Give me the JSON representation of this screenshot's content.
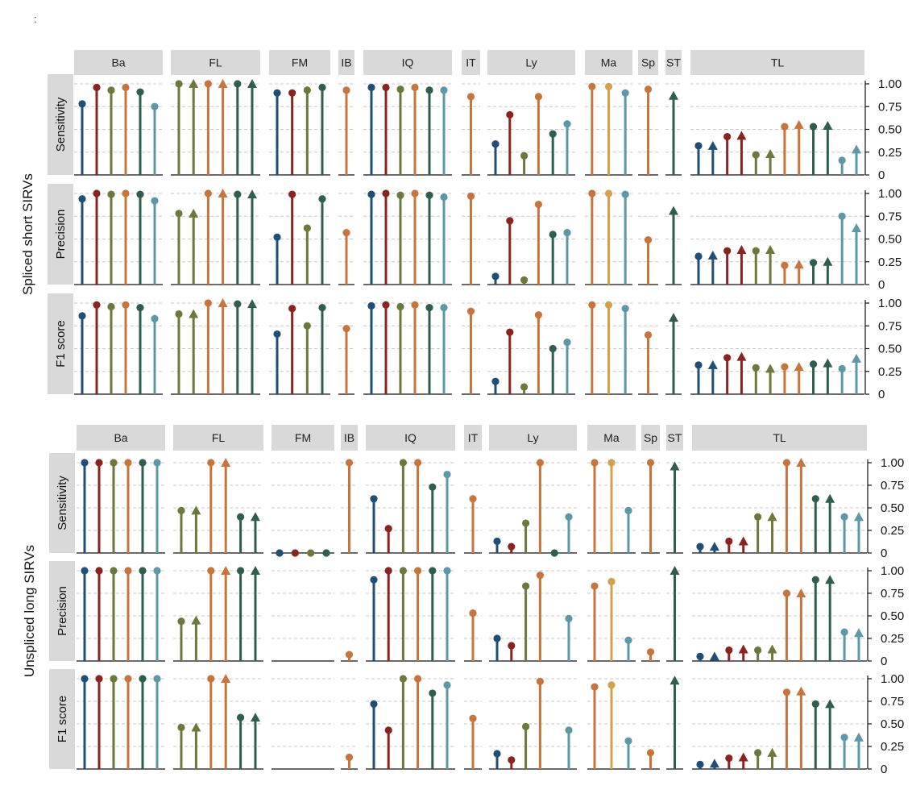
{
  "corner_mark": ":",
  "chart_data": {
    "type": "lollipop",
    "tools": [
      "Ba",
      "FL",
      "FM",
      "IB",
      "IQ",
      "IT",
      "Ly",
      "Ma",
      "Sp",
      "ST",
      "TL"
    ],
    "metrics": [
      "Sensitivity",
      "Precision",
      "F1 score"
    ],
    "ylim": [
      0,
      1
    ],
    "yticks": [
      0,
      0.25,
      0.5,
      0.75,
      1.0
    ],
    "ytick_labels": [
      "0",
      "0.25",
      "0.50",
      "0.75",
      "1.00"
    ],
    "grid": true,
    "colors": {
      "navy": "#1f4e79",
      "maroon": "#8b2420",
      "olive": "#6b7a3a",
      "orange": "#c9743a",
      "green": "#2f5e4e",
      "teal": "#5b98a8",
      "gold": "#d4a04a"
    },
    "panels": [
      {
        "label": "Spliced short SIRVs",
        "tools": [
          {
            "name": "Ba",
            "markers": [
              "o",
              "o",
              "o",
              "o",
              "o",
              "o"
            ],
            "colors": [
              "navy",
              "maroon",
              "olive",
              "orange",
              "green",
              "teal"
            ],
            "values": {
              "Sensitivity": [
                0.78,
                0.96,
                0.93,
                0.96,
                0.91,
                0.75
              ],
              "Precision": [
                0.94,
                1.0,
                0.99,
                1.0,
                0.99,
                0.92
              ],
              "F1 score": [
                0.86,
                0.98,
                0.96,
                0.98,
                0.95,
                0.83
              ]
            }
          },
          {
            "name": "FL",
            "markers": [
              "o",
              "^",
              "o",
              "^",
              "o",
              "^"
            ],
            "colors": [
              "olive",
              "olive",
              "orange",
              "orange",
              "green",
              "green"
            ],
            "values": {
              "Sensitivity": [
                1.0,
                1.0,
                1.0,
                1.0,
                1.0,
                1.0
              ],
              "Precision": [
                0.78,
                0.78,
                1.0,
                1.0,
                0.99,
                0.99
              ],
              "F1 score": [
                0.88,
                0.88,
                1.0,
                1.0,
                0.99,
                0.99
              ]
            }
          },
          {
            "name": "FM",
            "markers": [
              "o",
              "o",
              "o",
              "o"
            ],
            "colors": [
              "navy",
              "maroon",
              "olive",
              "green"
            ],
            "values": {
              "Sensitivity": [
                0.9,
                0.9,
                0.93,
                0.96
              ],
              "Precision": [
                0.52,
                0.99,
                0.62,
                0.94
              ],
              "F1 score": [
                0.66,
                0.94,
                0.75,
                0.95
              ]
            }
          },
          {
            "name": "IB",
            "markers": [
              "o"
            ],
            "colors": [
              "orange"
            ],
            "values": {
              "Sensitivity": [
                0.93
              ],
              "Precision": [
                0.57
              ],
              "F1 score": [
                0.72
              ]
            }
          },
          {
            "name": "IQ",
            "markers": [
              "o",
              "o",
              "o",
              "o",
              "o",
              "o"
            ],
            "colors": [
              "navy",
              "maroon",
              "olive",
              "orange",
              "green",
              "teal"
            ],
            "values": {
              "Sensitivity": [
                0.96,
                0.96,
                0.94,
                0.96,
                0.93,
                0.93
              ],
              "Precision": [
                0.99,
                1.0,
                0.98,
                1.0,
                0.98,
                0.96
              ],
              "F1 score": [
                0.97,
                0.98,
                0.96,
                0.98,
                0.95,
                0.95
              ]
            }
          },
          {
            "name": "IT",
            "markers": [
              "o"
            ],
            "colors": [
              "orange"
            ],
            "values": {
              "Sensitivity": [
                0.86
              ],
              "Precision": [
                0.97
              ],
              "F1 score": [
                0.91
              ]
            }
          },
          {
            "name": "Ly",
            "markers": [
              "o",
              "o",
              "o",
              "o",
              "o",
              "o"
            ],
            "colors": [
              "navy",
              "maroon",
              "olive",
              "orange",
              "green",
              "teal"
            ],
            "values": {
              "Sensitivity": [
                0.34,
                0.66,
                0.21,
                0.86,
                0.45,
                0.56
              ],
              "Precision": [
                0.09,
                0.7,
                0.05,
                0.88,
                0.55,
                0.57
              ],
              "F1 score": [
                0.14,
                0.68,
                0.08,
                0.87,
                0.5,
                0.57
              ]
            }
          },
          {
            "name": "Ma",
            "markers": [
              "o",
              "o",
              "o"
            ],
            "colors": [
              "orange",
              "gold",
              "teal"
            ],
            "values": {
              "Sensitivity": [
                0.97,
                0.97,
                0.9
              ],
              "Precision": [
                1.0,
                1.0,
                0.99
              ],
              "F1 score": [
                0.98,
                0.98,
                0.94
              ]
            }
          },
          {
            "name": "Sp",
            "markers": [
              "o"
            ],
            "colors": [
              "orange"
            ],
            "values": {
              "Sensitivity": [
                0.94
              ],
              "Precision": [
                0.49
              ],
              "F1 score": [
                0.65
              ]
            }
          },
          {
            "name": "ST",
            "markers": [
              "^"
            ],
            "colors": [
              "green"
            ],
            "values": {
              "Sensitivity": [
                0.87
              ],
              "Precision": [
                0.81
              ],
              "F1 score": [
                0.84
              ]
            }
          },
          {
            "name": "TL",
            "markers": [
              "o",
              "^",
              "o",
              "^",
              "o",
              "^",
              "o",
              "^",
              "o",
              "^",
              "o",
              "^"
            ],
            "colors": [
              "navy",
              "navy",
              "maroon",
              "maroon",
              "olive",
              "olive",
              "orange",
              "orange",
              "green",
              "green",
              "teal",
              "teal"
            ],
            "values": {
              "Sensitivity": [
                0.32,
                0.32,
                0.42,
                0.43,
                0.22,
                0.23,
                0.53,
                0.55,
                0.53,
                0.54,
                0.16,
                0.28
              ],
              "Precision": [
                0.31,
                0.32,
                0.37,
                0.38,
                0.37,
                0.38,
                0.21,
                0.22,
                0.24,
                0.25,
                0.75,
                0.62
              ],
              "F1 score": [
                0.32,
                0.32,
                0.4,
                0.41,
                0.29,
                0.28,
                0.3,
                0.3,
                0.33,
                0.34,
                0.28,
                0.39
              ]
            }
          }
        ]
      },
      {
        "label": "Unspliced long SIRVs",
        "tools": [
          {
            "name": "Ba",
            "markers": [
              "o",
              "o",
              "o",
              "o",
              "o",
              "o"
            ],
            "colors": [
              "navy",
              "maroon",
              "olive",
              "orange",
              "green",
              "teal"
            ],
            "values": {
              "Sensitivity": [
                1.0,
                1.0,
                1.0,
                1.0,
                1.0,
                1.0
              ],
              "Precision": [
                1.0,
                1.0,
                1.0,
                1.0,
                1.0,
                1.0
              ],
              "F1 score": [
                1.0,
                1.0,
                1.0,
                1.0,
                1.0,
                1.0
              ]
            }
          },
          {
            "name": "FL",
            "markers": [
              "o",
              "^",
              "o",
              "^",
              "o",
              "^"
            ],
            "colors": [
              "olive",
              "olive",
              "orange",
              "orange",
              "green",
              "green"
            ],
            "values": {
              "Sensitivity": [
                0.47,
                0.47,
                1.0,
                1.0,
                0.4,
                0.4
              ],
              "Precision": [
                0.44,
                0.45,
                1.0,
                1.0,
                1.0,
                1.0
              ],
              "F1 score": [
                0.46,
                0.46,
                1.0,
                1.0,
                0.57,
                0.57
              ]
            }
          },
          {
            "name": "FM",
            "markers": [
              "o",
              "o",
              "o",
              "o"
            ],
            "colors": [
              "navy",
              "maroon",
              "olive",
              "green"
            ],
            "values": {
              "Sensitivity": [
                0.0,
                0.0,
                0.0,
                0.0
              ],
              "Precision": [
                null,
                null,
                null,
                null
              ],
              "F1 score": [
                null,
                null,
                null,
                null
              ]
            }
          },
          {
            "name": "IB",
            "markers": [
              "o"
            ],
            "colors": [
              "orange"
            ],
            "values": {
              "Sensitivity": [
                1.0
              ],
              "Precision": [
                0.07
              ],
              "F1 score": [
                0.13
              ]
            }
          },
          {
            "name": "IQ",
            "markers": [
              "o",
              "o",
              "o",
              "o",
              "o",
              "o"
            ],
            "colors": [
              "navy",
              "maroon",
              "olive",
              "orange",
              "green",
              "teal"
            ],
            "values": {
              "Sensitivity": [
                0.6,
                0.27,
                1.0,
                1.0,
                0.73,
                0.87
              ],
              "Precision": [
                0.9,
                1.0,
                1.0,
                1.0,
                1.0,
                1.0
              ],
              "F1 score": [
                0.72,
                0.43,
                1.0,
                1.0,
                0.84,
                0.93
              ]
            }
          },
          {
            "name": "IT",
            "markers": [
              "o"
            ],
            "colors": [
              "orange"
            ],
            "values": {
              "Sensitivity": [
                0.6
              ],
              "Precision": [
                0.53
              ],
              "F1 score": [
                0.56
              ]
            }
          },
          {
            "name": "Ly",
            "markers": [
              "o",
              "o",
              "o",
              "o",
              "o",
              "o"
            ],
            "colors": [
              "navy",
              "maroon",
              "olive",
              "orange",
              "green",
              "teal"
            ],
            "values": {
              "Sensitivity": [
                0.13,
                0.07,
                0.33,
                1.0,
                0.0,
                0.4
              ],
              "Precision": [
                0.25,
                0.17,
                0.83,
                0.95,
                null,
                0.47
              ],
              "F1 score": [
                0.17,
                0.1,
                0.47,
                0.97,
                null,
                0.43
              ]
            }
          },
          {
            "name": "Ma",
            "markers": [
              "o",
              "o",
              "o"
            ],
            "colors": [
              "orange",
              "gold",
              "teal"
            ],
            "values": {
              "Sensitivity": [
                1.0,
                1.0,
                0.47
              ],
              "Precision": [
                0.83,
                0.88,
                0.23
              ],
              "F1 score": [
                0.91,
                0.93,
                0.31
              ]
            }
          },
          {
            "name": "Sp",
            "markers": [
              "o"
            ],
            "colors": [
              "orange"
            ],
            "values": {
              "Sensitivity": [
                1.0
              ],
              "Precision": [
                0.1
              ],
              "F1 score": [
                0.18
              ]
            }
          },
          {
            "name": "ST",
            "markers": [
              "^"
            ],
            "colors": [
              "green"
            ],
            "values": {
              "Sensitivity": [
                0.96
              ],
              "Precision": [
                1.0
              ],
              "F1 score": [
                0.98
              ]
            }
          },
          {
            "name": "TL",
            "markers": [
              "o",
              "^",
              "o",
              "^",
              "o",
              "^",
              "o",
              "^",
              "o",
              "^",
              "o",
              "^"
            ],
            "colors": [
              "navy",
              "navy",
              "maroon",
              "maroon",
              "olive",
              "olive",
              "orange",
              "orange",
              "green",
              "green",
              "teal",
              "teal"
            ],
            "values": {
              "Sensitivity": [
                0.07,
                0.07,
                0.13,
                0.13,
                0.4,
                0.4,
                1.0,
                1.0,
                0.6,
                0.6,
                0.4,
                0.4
              ],
              "Precision": [
                0.05,
                0.05,
                0.12,
                0.13,
                0.12,
                0.13,
                0.75,
                0.75,
                0.9,
                0.9,
                0.32,
                0.31
              ],
              "F1 score": [
                0.05,
                0.06,
                0.12,
                0.13,
                0.18,
                0.18,
                0.85,
                0.86,
                0.72,
                0.72,
                0.35,
                0.35
              ]
            }
          }
        ]
      }
    ]
  }
}
